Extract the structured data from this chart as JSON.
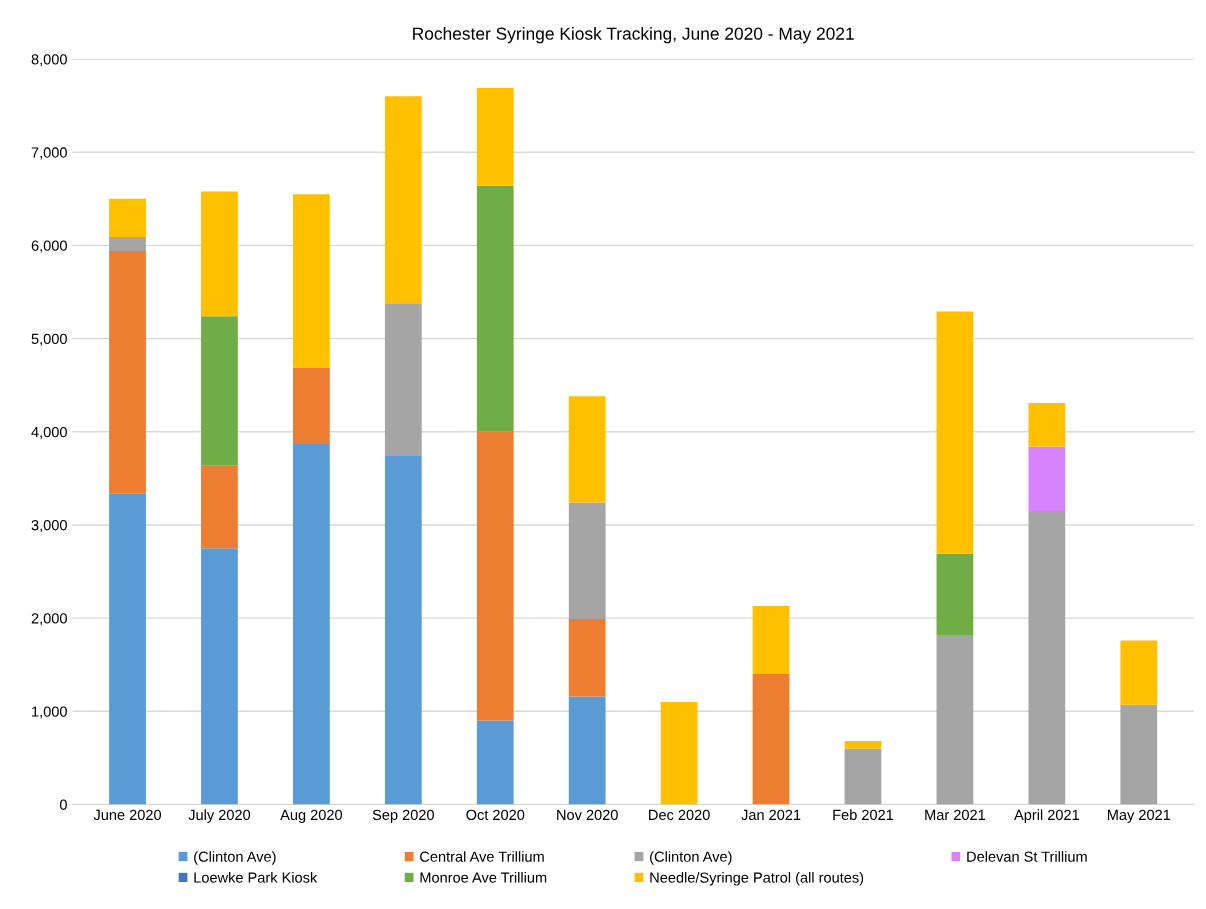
{
  "chart_data": {
    "type": "bar",
    "title": "Rochester Syringe Kiosk Tracking, June 2020 - May 2021",
    "stacked": true,
    "grid": "y",
    "legend": "bottom",
    "categories": [
      "June 2020",
      "July 2020",
      "Aug 2020",
      "Sep 2020",
      "Oct 2020",
      "Nov 2020",
      "Dec 2020",
      "Jan 2021",
      "Feb 2021",
      "Mar 2021",
      "April 2021",
      "May 2021"
    ],
    "ylim": [
      0,
      8000
    ],
    "yticks": [
      0,
      {
        "value": 1000,
        "label": "1,000"
      },
      {
        "value": 2000,
        "label": "2,000"
      },
      {
        "value": 3000,
        "label": "3,000"
      },
      {
        "value": 4000,
        "label": "4,000"
      },
      {
        "value": 5000,
        "label": "5,000"
      },
      {
        "value": 6000,
        "label": "6,000"
      },
      {
        "value": 7000,
        "label": "7,000"
      },
      {
        "value": 8000,
        "label": "8,000"
      }
    ],
    "series": [
      {
        "name": "(Clinton Ave)",
        "color": "#5b9bd5",
        "values": [
          3340,
          2750,
          3870,
          3740,
          900,
          1160,
          0,
          0,
          0,
          0,
          0,
          0
        ]
      },
      {
        "name": "Central Ave Trillium",
        "color": "#ed7d31",
        "values": [
          2600,
          890,
          820,
          0,
          3100,
          830,
          0,
          1400,
          0,
          0,
          0,
          0
        ]
      },
      {
        "name": "(Clinton Ave)",
        "color": "#a5a5a5",
        "values": [
          150,
          0,
          0,
          1640,
          0,
          1250,
          0,
          0,
          600,
          1820,
          3150,
          1070
        ]
      },
      {
        "name": "Delevan St Trillium",
        "color": "#d783ff",
        "values": [
          0,
          0,
          0,
          0,
          0,
          0,
          0,
          0,
          0,
          0,
          690,
          0
        ]
      },
      {
        "name": "Loewke Park Kiosk",
        "color": "#4472c4",
        "values": [
          0,
          0,
          0,
          0,
          0,
          0,
          0,
          0,
          0,
          0,
          0,
          0
        ]
      },
      {
        "name": "Monroe Ave Trillium",
        "color": "#70ad47",
        "values": [
          0,
          1600,
          0,
          0,
          2640,
          0,
          0,
          0,
          0,
          870,
          0,
          0
        ]
      },
      {
        "name": "Needle/Syringe Patrol (all routes)",
        "color": "#ffc000",
        "values": [
          410,
          1340,
          1860,
          2220,
          1050,
          1140,
          1100,
          730,
          80,
          2600,
          470,
          690
        ]
      }
    ]
  }
}
